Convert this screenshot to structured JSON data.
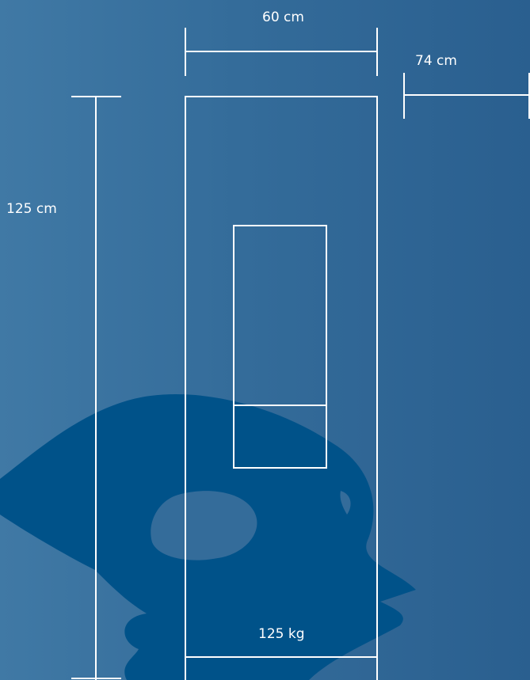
{
  "dimensions": {
    "width": "60 cm",
    "depth": "74 cm",
    "height": "125 cm",
    "weight": "125 kg"
  },
  "colors": {
    "background_left": "#4079a5",
    "background_right": "#2a5f8f",
    "stroke": "#ffffff",
    "silhouette": "#005289"
  }
}
